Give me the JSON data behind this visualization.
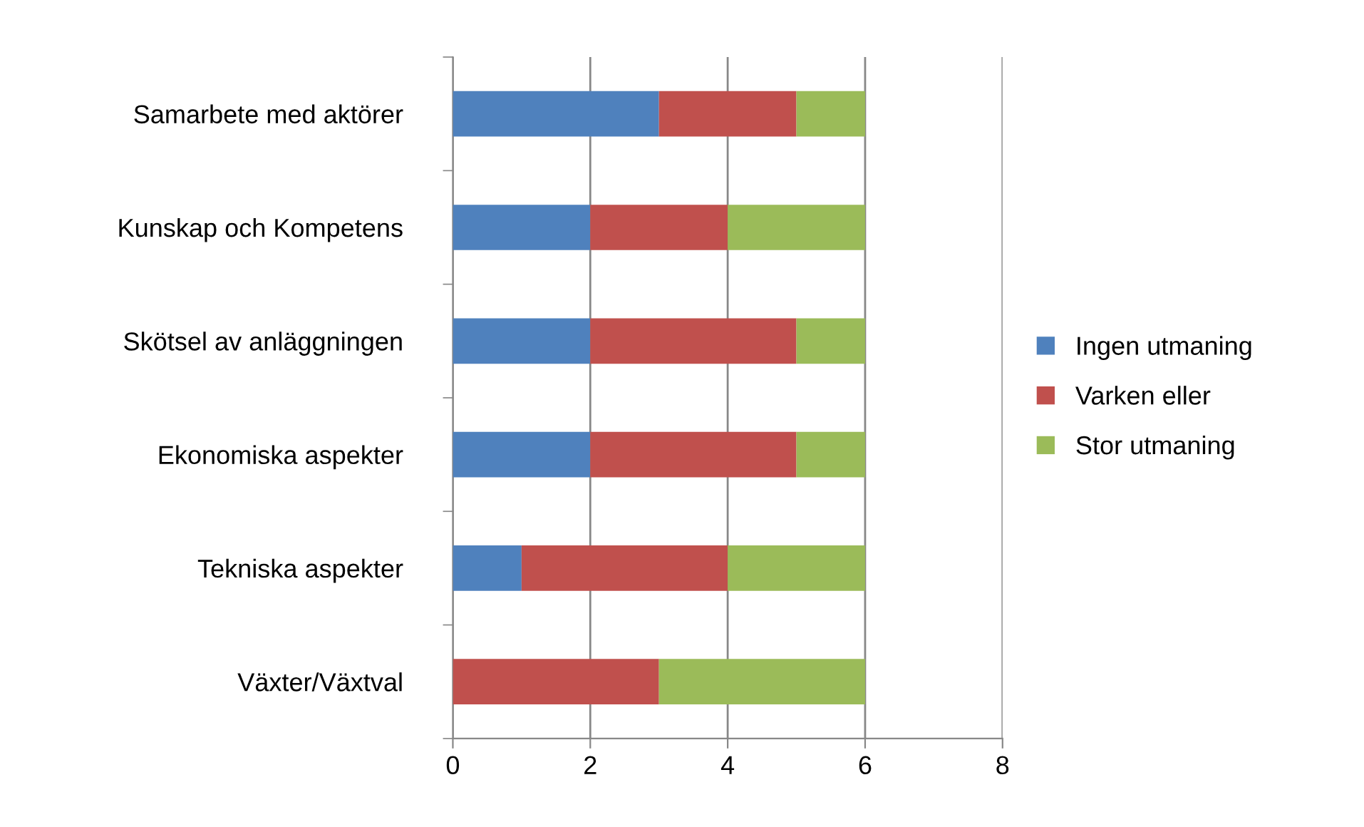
{
  "chart_data": {
    "type": "bar",
    "orientation": "horizontal",
    "stacked": true,
    "categories": [
      "Samarbete med aktörer",
      "Kunskap och Kompetens",
      "Skötsel av anläggningen",
      "Ekonomiska aspekter",
      "Tekniska aspekter",
      "Växter/Växtval"
    ],
    "series": [
      {
        "name": "Ingen utmaning",
        "color": "#4f81bd",
        "values": [
          3,
          2,
          2,
          2,
          1,
          0
        ]
      },
      {
        "name": "Varken eller",
        "color": "#c0504d",
        "values": [
          2,
          2,
          3,
          3,
          3,
          3
        ]
      },
      {
        "name": "Stor utmaning",
        "color": "#9bbb59",
        "values": [
          1,
          2,
          1,
          1,
          2,
          3
        ]
      }
    ],
    "xlim": [
      0,
      8
    ],
    "xticks": [
      0,
      2,
      4,
      6,
      8
    ],
    "grid": "x",
    "legend": "right"
  }
}
